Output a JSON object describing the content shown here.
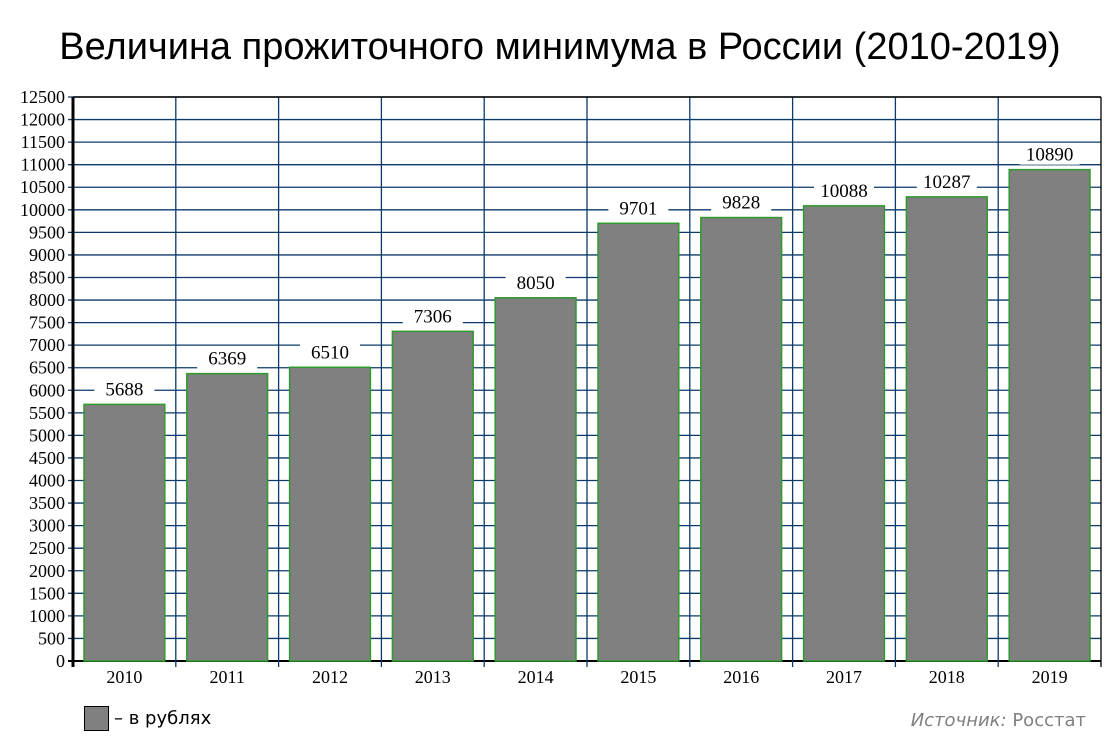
{
  "chart_data": {
    "type": "bar",
    "title": "Величина прожиточного минимума в России (2010-2019)",
    "categories": [
      "2010",
      "2011",
      "2012",
      "2013",
      "2014",
      "2015",
      "2016",
      "2017",
      "2018",
      "2019"
    ],
    "values": [
      5688,
      6369,
      6510,
      7306,
      8050,
      9701,
      9828,
      10088,
      10287,
      10890
    ],
    "ylim": [
      0,
      12500
    ],
    "ytick_step": 500,
    "grid": true,
    "legend": {
      "label": "– в рублях",
      "placement": "bottom-left"
    },
    "source_label": "Источник:",
    "source_value": " Росстат",
    "colors": {
      "bar": "#808080",
      "bar_edge": "#2e9a2e",
      "grid": "#0b3a6b"
    }
  }
}
